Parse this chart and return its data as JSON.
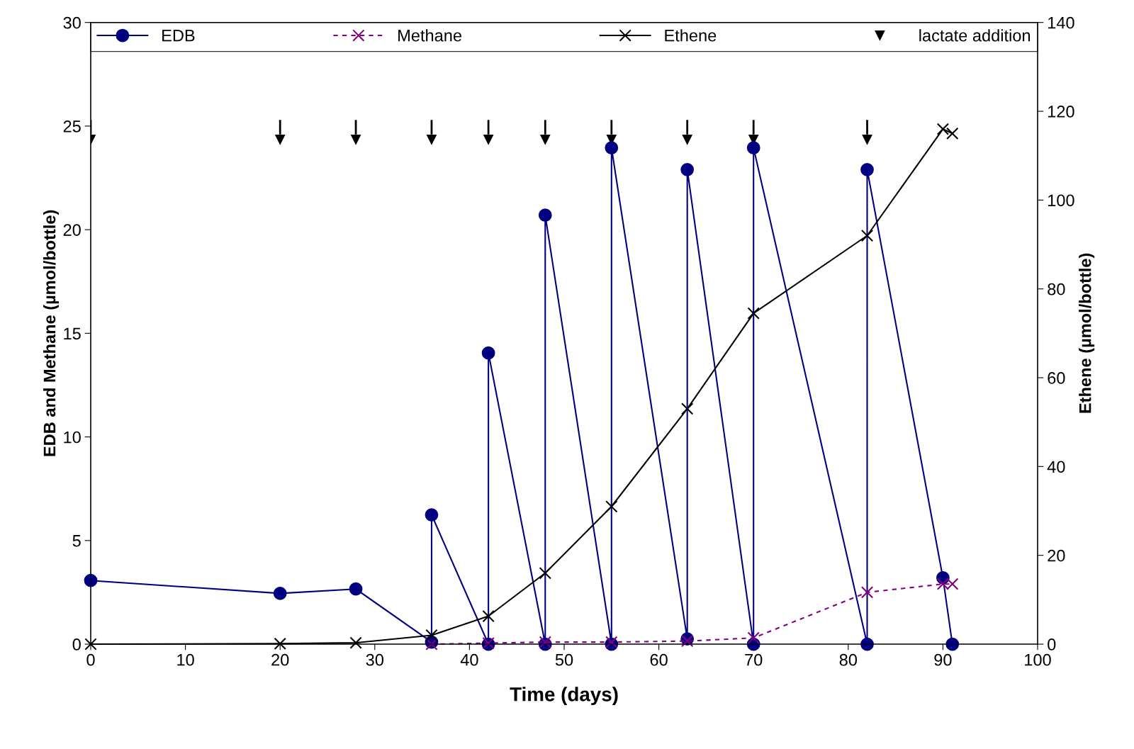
{
  "chart_data": {
    "type": "line",
    "xlabel": "Time (days)",
    "ylabel": "EDB and Methane (µmol/bottle)",
    "y2label": "Ethene (µmol/bottle)",
    "xlim": [
      0,
      100
    ],
    "xticks": [
      0,
      10,
      20,
      30,
      40,
      50,
      60,
      70,
      80,
      90,
      100
    ],
    "ylim": [
      0,
      30
    ],
    "yticks": [
      0,
      5,
      10,
      15,
      20,
      25,
      30
    ],
    "y2lim": [
      0,
      140
    ],
    "y2ticks": [
      0,
      20,
      40,
      60,
      80,
      100,
      120,
      140
    ],
    "legend": "top",
    "grid": false,
    "series": [
      {
        "name": "EDB",
        "color": "#000080",
        "marker": "circle",
        "line_style": "solid",
        "x": [
          0,
          20,
          28,
          36,
          36,
          42,
          42,
          48,
          48,
          55,
          55,
          63,
          63,
          70,
          70,
          82,
          82,
          90,
          91
        ],
        "values": [
          3.07,
          2.45,
          2.66,
          0.1,
          6.24,
          0,
          14.05,
          0,
          20.7,
          0,
          23.95,
          0.25,
          22.9,
          0,
          23.95,
          0,
          22.9,
          3.2,
          0
        ]
      },
      {
        "name": "Methane",
        "color": "#800080",
        "marker": "cross",
        "line_style": "dashed",
        "x": [
          36,
          42,
          48,
          55,
          63,
          70,
          82,
          90,
          91
        ],
        "values": [
          0,
          0.05,
          0.1,
          0.1,
          0.15,
          0.3,
          2.5,
          2.9,
          2.9
        ]
      },
      {
        "name": "Ethene",
        "color": "#000000",
        "marker": "cross",
        "line_style": "solid",
        "axis": "y2",
        "x": [
          0,
          20,
          28,
          36,
          42,
          48,
          55,
          63,
          70,
          82,
          90,
          91
        ],
        "values": [
          0,
          0.1,
          0.3,
          2,
          6.3,
          16,
          31,
          53,
          74.5,
          92,
          116,
          115
        ]
      },
      {
        "name": "lactate addition",
        "type": "scatter",
        "color": "#000000",
        "marker": "triangle",
        "x": [
          0,
          20,
          28,
          36,
          42,
          48,
          55,
          63,
          70,
          82
        ],
        "values": [
          24.35,
          24.35,
          24.35,
          24.35,
          24.35,
          24.35,
          24.35,
          24.35,
          24.35,
          24.35
        ]
      }
    ]
  }
}
